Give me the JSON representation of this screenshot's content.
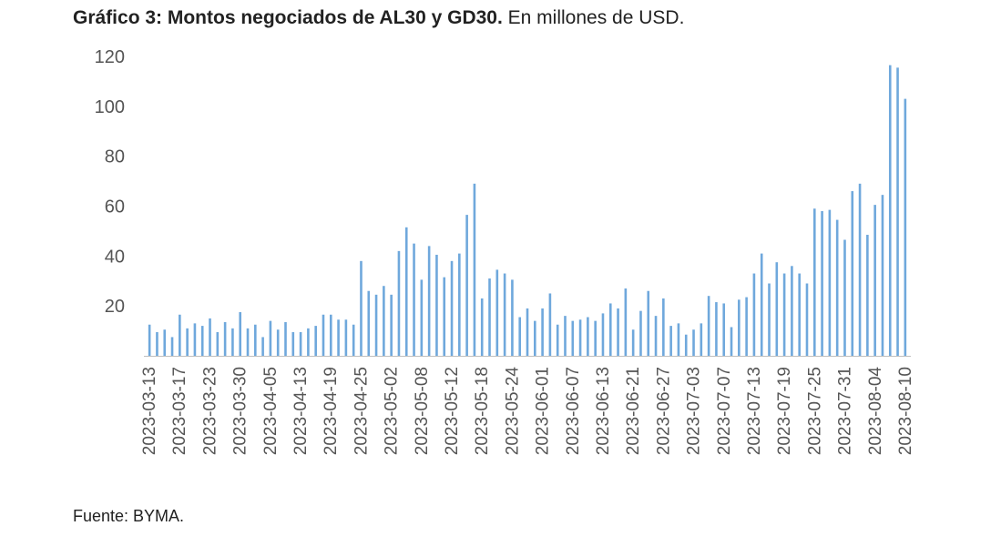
{
  "header": {
    "title_bold": "Gráfico 3: Montos negociados de AL30 y GD30.",
    "title_rest": " En millones de USD."
  },
  "footer": {
    "source": "Fuente: BYMA."
  },
  "chart_data": {
    "type": "bar",
    "title": "Gráfico 3: Montos negociados de AL30 y GD30. En millones de USD.",
    "xlabel": "",
    "ylabel": "",
    "ylim": [
      0,
      120
    ],
    "yticks": [
      20,
      40,
      60,
      80,
      100,
      120
    ],
    "grid": false,
    "legend": "none",
    "bar_color": "#6fa8dc",
    "tick_labels": [
      "2023-03-13",
      "2023-03-17",
      "2023-03-23",
      "2023-03-30",
      "2023-04-05",
      "2023-04-13",
      "2023-04-19",
      "2023-04-25",
      "2023-05-02",
      "2023-05-08",
      "2023-05-12",
      "2023-05-18",
      "2023-05-24",
      "2023-06-01",
      "2023-06-07",
      "2023-06-13",
      "2023-06-21",
      "2023-06-27",
      "2023-07-03",
      "2023-07-07",
      "2023-07-13",
      "2023-07-19",
      "2023-07-25",
      "2023-07-31",
      "2023-08-04",
      "2023-08-10"
    ],
    "values": [
      12.5,
      9.5,
      10.5,
      7.5,
      16.5,
      11,
      13,
      12,
      15,
      9.5,
      13.5,
      11,
      17.5,
      11,
      12.5,
      7.5,
      14,
      10.5,
      13.5,
      9.5,
      9.5,
      11,
      12,
      16.5,
      16.5,
      14.5,
      14.5,
      12.5,
      38,
      26,
      24.5,
      28,
      24.5,
      42,
      51.5,
      45,
      30.5,
      44,
      40.5,
      31.5,
      38,
      41,
      56.5,
      69,
      23,
      31,
      34.5,
      33,
      30.5,
      15.5,
      19,
      14,
      19,
      25,
      12.5,
      16,
      14,
      14.5,
      15.5,
      14,
      17,
      21,
      19,
      27,
      10.5,
      18,
      26,
      16,
      23,
      12,
      13,
      8.5,
      10.5,
      13,
      24,
      21.5,
      21,
      11.5,
      22.5,
      23.5,
      33,
      41,
      29,
      37.5,
      33,
      36,
      33,
      29,
      59,
      58,
      58.5,
      54.5,
      46.5,
      66,
      69,
      48.5,
      60.5,
      64.5,
      116.5,
      115.5,
      103
    ]
  }
}
